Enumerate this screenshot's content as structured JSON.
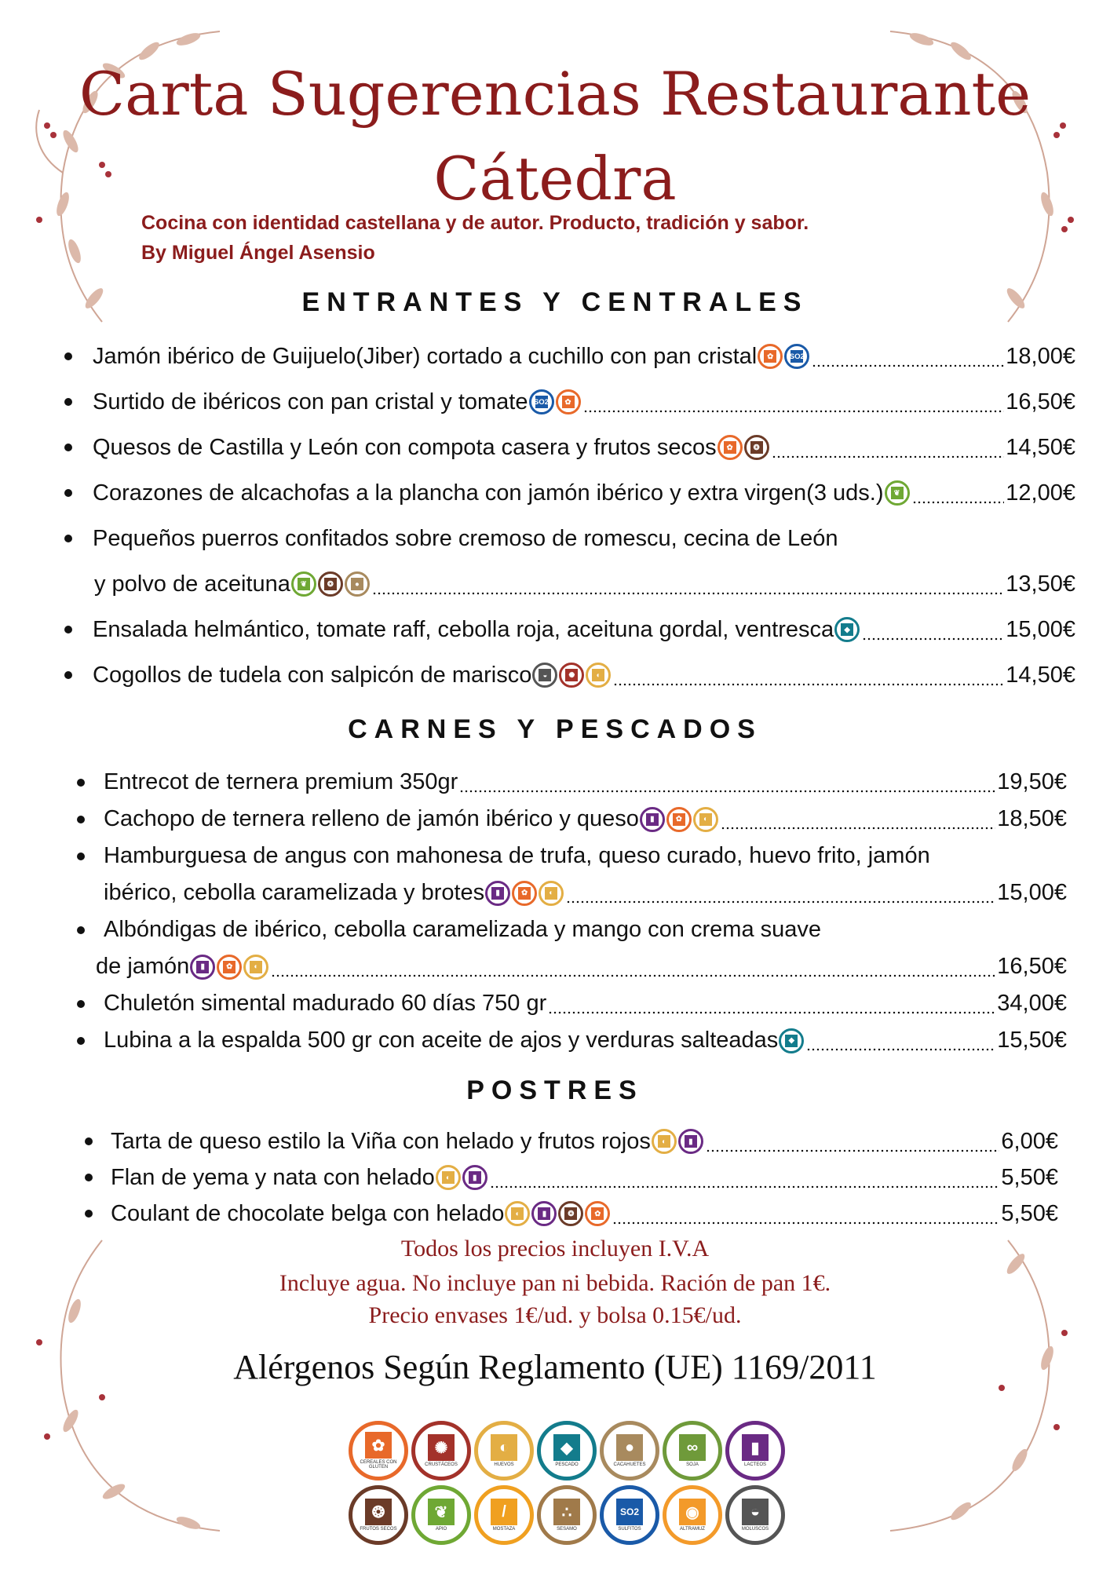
{
  "header": {
    "title_line1": "Carta Sugerencias Restaurante",
    "title_line2": "Cátedra",
    "tagline": "Cocina con identidad castellana y de autor. Producto, tradición y sabor.",
    "author": "By Miguel Ángel Asensio"
  },
  "allergens": {
    "cereales": {
      "label": "CEREALES CON GLUTEN",
      "color": "#e8692a",
      "glyph": "✿"
    },
    "crustaceos": {
      "label": "CRUSTÁCEOS",
      "color": "#a3322a",
      "glyph": "✺"
    },
    "huevos": {
      "label": "HUEVOS",
      "color": "#e3ae44",
      "glyph": "◐"
    },
    "pescado": {
      "label": "PESCADO",
      "color": "#137c8c",
      "glyph": "◆"
    },
    "cacahuetes": {
      "label": "CACAHUETES",
      "color": "#a88a5e",
      "glyph": "●"
    },
    "soja": {
      "label": "SOJA",
      "color": "#6f9a3a",
      "glyph": "∞"
    },
    "lacteos": {
      "label": "LACTEOS",
      "color": "#6a2a84",
      "glyph": "▮"
    },
    "frutos_secos": {
      "label": "FRUTOS SECOS",
      "color": "#6b3b28",
      "glyph": "❂"
    },
    "apio": {
      "label": "APIO",
      "color": "#6fa834",
      "glyph": "❦"
    },
    "mostaza": {
      "label": "MOSTAZA",
      "color": "#f0a020",
      "glyph": "/"
    },
    "sesamo": {
      "label": "SESAMO",
      "color": "#a07a4a",
      "glyph": "∴"
    },
    "sulfitos": {
      "label": "SULFITOS",
      "color": "#1a5aa8",
      "glyph": "SO2"
    },
    "altramuz": {
      "label": "ALTRAMUZ",
      "color": "#f39a2a",
      "glyph": "◉"
    },
    "moluscos": {
      "label": "MOLUSCOS",
      "color": "#555555",
      "glyph": "◒"
    }
  },
  "legend_order": [
    "cereales",
    "crustaceos",
    "huevos",
    "pescado",
    "cacahuetes",
    "soja",
    "lacteos",
    "frutos_secos",
    "apio",
    "mostaza",
    "sesamo",
    "sulfitos",
    "altramuz",
    "moluscos"
  ],
  "sections": [
    {
      "title": "ENTRANTES Y CENTRALES",
      "items": [
        {
          "lines": [
            "Jamón ibérico de Guijuelo(Jiber) cortado a cuchillo con pan cristal"
          ],
          "allergens": [
            "cereales",
            "sulfitos"
          ],
          "price": "18,00€"
        },
        {
          "lines": [
            "Surtido de ibéricos con pan cristal y tomate"
          ],
          "allergens": [
            "sulfitos",
            "cereales"
          ],
          "price": "16,50€"
        },
        {
          "lines": [
            "Quesos de Castilla y León con compota casera y frutos secos"
          ],
          "allergens": [
            "cereales",
            "frutos_secos"
          ],
          "price": "14,50€"
        },
        {
          "lines": [
            "Corazones de alcachofas a la plancha con jamón ibérico y extra virgen(3 uds.)"
          ],
          "allergens": [
            "apio"
          ],
          "price": "12,00€"
        },
        {
          "lines": [
            "Pequeños puerros confitados sobre cremoso de romescu, cecina de León",
            "y polvo de aceituna"
          ],
          "allergens": [
            "apio",
            "frutos_secos",
            "cacahuetes"
          ],
          "price": "13,50€"
        },
        {
          "lines": [
            "Ensalada helmántico, tomate raff, cebolla roja, aceituna gordal, ventresca"
          ],
          "allergens": [
            "pescado"
          ],
          "price": "15,00€"
        },
        {
          "lines": [
            "Cogollos de tudela con salpicón de marisco"
          ],
          "allergens": [
            "moluscos",
            "crustaceos",
            "huevos"
          ],
          "price": "14,50€"
        }
      ]
    },
    {
      "title": "CARNES Y PESCADOS",
      "items": [
        {
          "lines": [
            "Entrecot de ternera premium 350gr"
          ],
          "allergens": [],
          "price": "19,50€"
        },
        {
          "lines": [
            "Cachopo de ternera relleno de jamón ibérico y queso"
          ],
          "allergens": [
            "lacteos",
            "cereales",
            "huevos"
          ],
          "price": "18,50€"
        },
        {
          "lines": [
            "Hamburguesa de angus con mahonesa de trufa, queso curado, huevo frito, jamón",
            "ibérico, cebolla caramelizada y brotes"
          ],
          "allergens": [
            "lacteos",
            "cereales",
            "huevos"
          ],
          "price": "15,00€"
        },
        {
          "lines": [
            "Albóndigas de ibérico, cebolla caramelizada y mango con crema suave",
            "de jamón"
          ],
          "allergens": [
            "lacteos",
            "cereales",
            "huevos"
          ],
          "price": "16,50€"
        },
        {
          "lines": [
            "Chuletón simental madurado 60 días 750 gr"
          ],
          "allergens": [],
          "price": "34,00€"
        },
        {
          "lines": [
            "Lubina a la espalda 500 gr con aceite de ajos y verduras salteadas"
          ],
          "allergens": [
            "pescado"
          ],
          "price": "15,50€"
        }
      ]
    },
    {
      "title": "POSTRES",
      "items": [
        {
          "lines": [
            "Tarta de queso estilo la Viña con helado y frutos rojos"
          ],
          "allergens": [
            "huevos",
            "lacteos"
          ],
          "price": "6,00€"
        },
        {
          "lines": [
            "Flan de yema y nata con helado"
          ],
          "allergens": [
            "huevos",
            "lacteos"
          ],
          "price": "5,50€"
        },
        {
          "lines": [
            "Coulant de chocolate belga con helado"
          ],
          "allergens": [
            "huevos",
            "lacteos",
            "frutos_secos",
            "cereales"
          ],
          "price": "5,50€"
        }
      ]
    }
  ],
  "notes": {
    "iva": "Todos los precios incluyen I.V.A",
    "water_bread": "Incluye agua. No incluye pan ni bebida. Ración de pan 1€.",
    "packaging": "Precio envases 1€/ud. y bolsa 0.15€/ud."
  },
  "regulation": "Alérgenos Según Reglamento (UE) 1169/2011",
  "colors": {
    "accent": "#8b1c1c",
    "foliage": "#d9b3a3",
    "berries": "#a8323a"
  }
}
